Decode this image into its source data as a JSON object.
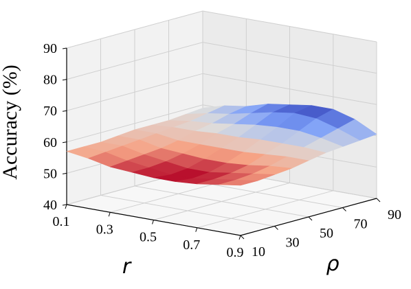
{
  "chart_data": {
    "type": "surface3d",
    "title": "",
    "zlabel": "Accuracy (%)",
    "xlabel": "r",
    "ylabel": "ρ",
    "r_ticks": [
      "0.1",
      "0.3",
      "0.5",
      "0.7",
      "0.9"
    ],
    "rho_ticks": [
      "10",
      "30",
      "50",
      "70",
      "90"
    ],
    "z_ticks": [
      "40",
      "50",
      "60",
      "70",
      "80",
      "90"
    ],
    "zlim": [
      40,
      90
    ],
    "grid": true,
    "colormap": "coolwarm",
    "r": [
      0.1,
      0.2,
      0.3,
      0.4,
      0.5,
      0.6,
      0.7,
      0.8,
      0.9
    ],
    "rho": [
      10,
      20,
      30,
      40,
      50,
      60,
      70,
      80,
      90
    ],
    "accuracy": [
      [
        57,
        57,
        57,
        57.5,
        58,
        58,
        58,
        58.5,
        59
      ],
      [
        56,
        56.5,
        57,
        57.5,
        58,
        58.5,
        59,
        60,
        61
      ],
      [
        54.5,
        55,
        55.5,
        56,
        57,
        58.5,
        59.5,
        61,
        62
      ],
      [
        54,
        54,
        54.5,
        55.5,
        57,
        59,
        60.5,
        62.5,
        64
      ],
      [
        53.5,
        53,
        53.5,
        55,
        57,
        59,
        61.5,
        64,
        65
      ],
      [
        53.5,
        53,
        53.5,
        55,
        57,
        59.5,
        62,
        65,
        66
      ],
      [
        54,
        54,
        54.5,
        55.5,
        57.5,
        59.5,
        62,
        64.5,
        66
      ],
      [
        55,
        55,
        55.5,
        56.5,
        58,
        59.5,
        61,
        62.5,
        64
      ],
      [
        56,
        56,
        56.5,
        57,
        58,
        59,
        59.5,
        60,
        60.5
      ]
    ]
  }
}
